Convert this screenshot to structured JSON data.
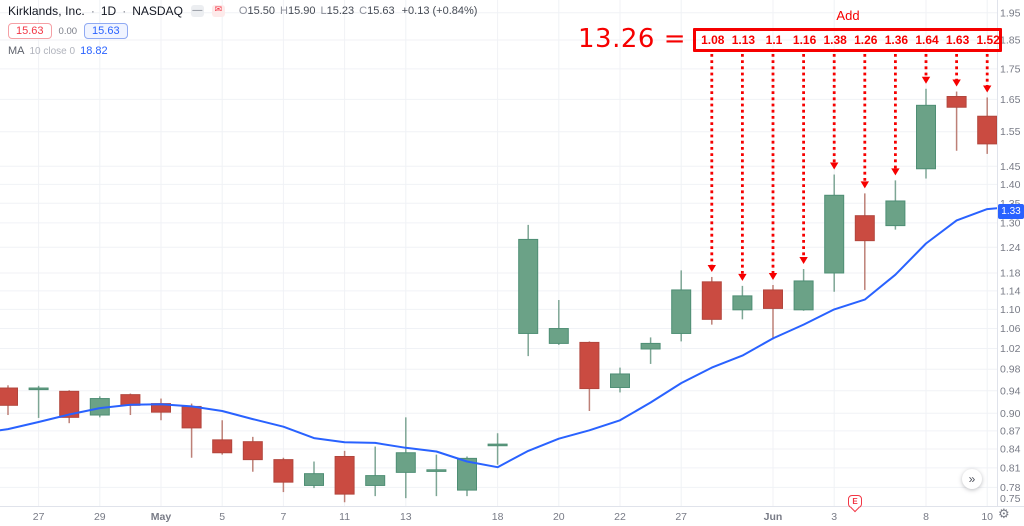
{
  "header": {
    "symbol_title": "Kirklands, Inc.",
    "sep1": "·",
    "timeframe": "1D",
    "sep2": "·",
    "exchange": "NASDAQ",
    "minus_icon_glyph": "—",
    "mail_icon_glyph": "✉",
    "ohlc": {
      "o_label": "O",
      "o_value": "15.50",
      "h_label": "H",
      "h_value": "15.90",
      "l_label": "L",
      "l_value": "15.23",
      "c_label": "C",
      "c_value": "15.63",
      "change": "+0.13 (+0.84%)"
    },
    "sell_price": "15.63",
    "spread": "0.00",
    "buy_price": "15.63",
    "ma_legend": {
      "name": "MA",
      "params": "10 close 0",
      "value": "18.82"
    }
  },
  "annotation": {
    "sum_label": "13.26 =",
    "add_label": "Add",
    "values": [
      "1.08",
      "1.13",
      "1.1",
      "1.16",
      "1.38",
      "1.26",
      "1.36",
      "1.64",
      "1.63",
      "1.52"
    ],
    "first_candle_index": 23,
    "color": "#f60000"
  },
  "price_scale": {
    "ma_price_label": "1.33"
  },
  "timeline": {
    "earnings_label": "E"
  },
  "buttons": {
    "goto_realtime": "»",
    "gear": "⚙"
  },
  "chart_data": {
    "type": "candlestick",
    "symbol": "Kirklands, Inc.",
    "interval": "1D",
    "exchange": "NASDAQ",
    "scale": "logarithmic",
    "grid": true,
    "price_axis": {
      "ticks": [
        "1.95",
        "1.85",
        "1.75",
        "1.65",
        "1.55",
        "1.45",
        "1.40",
        "1.35",
        "1.30",
        "1.24",
        "1.18",
        "1.14",
        "1.10",
        "1.06",
        "1.02",
        "0.98",
        "0.94",
        "0.90",
        "0.87",
        "0.84",
        "0.81",
        "0.78",
        "0.75"
      ],
      "current_ma_value": 1.33
    },
    "time_axis": {
      "ticks": [
        {
          "i": 1,
          "label": "27"
        },
        {
          "i": 3,
          "label": "29"
        },
        {
          "i": 5,
          "label": "May"
        },
        {
          "i": 7,
          "label": "5"
        },
        {
          "i": 9,
          "label": "7"
        },
        {
          "i": 11,
          "label": "11"
        },
        {
          "i": 13,
          "label": "13"
        },
        {
          "i": 16,
          "label": "18"
        },
        {
          "i": 18,
          "label": "20"
        },
        {
          "i": 20,
          "label": "22"
        },
        {
          "i": 22,
          "label": "27"
        },
        {
          "i": 25,
          "label": "Jun"
        },
        {
          "i": 27,
          "label": "3"
        },
        {
          "i": 30,
          "label": "8"
        },
        {
          "i": 32,
          "label": "10"
        }
      ]
    },
    "candles": [
      {
        "o": 0.945,
        "h": 0.95,
        "l": 0.897,
        "c": 0.914
      },
      {
        "o": 0.943,
        "h": 0.949,
        "l": 0.892,
        "c": 0.945
      },
      {
        "o": 0.939,
        "h": 0.941,
        "l": 0.883,
        "c": 0.893
      },
      {
        "o": 0.897,
        "h": 0.93,
        "l": 0.893,
        "c": 0.926
      },
      {
        "o": 0.933,
        "h": 0.935,
        "l": 0.897,
        "c": 0.914
      },
      {
        "o": 0.917,
        "h": 0.926,
        "l": 0.888,
        "c": 0.902
      },
      {
        "o": 0.912,
        "h": 0.917,
        "l": 0.826,
        "c": 0.875
      },
      {
        "o": 0.855,
        "h": 0.888,
        "l": 0.831,
        "c": 0.834
      },
      {
        "o": 0.852,
        "h": 0.86,
        "l": 0.804,
        "c": 0.823
      },
      {
        "o": 0.823,
        "h": 0.826,
        "l": 0.773,
        "c": 0.788
      },
      {
        "o": 0.783,
        "h": 0.82,
        "l": 0.779,
        "c": 0.801
      },
      {
        "o": 0.828,
        "h": 0.837,
        "l": 0.758,
        "c": 0.77
      },
      {
        "o": 0.783,
        "h": 0.844,
        "l": 0.767,
        "c": 0.798
      },
      {
        "o": 0.803,
        "h": 0.893,
        "l": 0.764,
        "c": 0.834
      },
      {
        "o": 0.805,
        "h": 0.831,
        "l": 0.767,
        "c": 0.807
      },
      {
        "o": 0.776,
        "h": 0.828,
        "l": 0.767,
        "c": 0.825
      },
      {
        "o": 0.846,
        "h": 0.866,
        "l": 0.815,
        "c": 0.848
      },
      {
        "o": 1.05,
        "h": 1.295,
        "l": 1.005,
        "c": 1.259
      },
      {
        "o": 1.03,
        "h": 1.12,
        "l": 1.027,
        "c": 1.06
      },
      {
        "o": 1.032,
        "h": 1.034,
        "l": 0.904,
        "c": 0.944
      },
      {
        "o": 0.946,
        "h": 0.983,
        "l": 0.937,
        "c": 0.971
      },
      {
        "o": 1.019,
        "h": 1.042,
        "l": 0.99,
        "c": 1.03
      },
      {
        "o": 1.05,
        "h": 1.186,
        "l": 1.034,
        "c": 1.142
      },
      {
        "o": 1.16,
        "h": 1.171,
        "l": 1.068,
        "c": 1.079
      },
      {
        "o": 1.099,
        "h": 1.151,
        "l": 1.079,
        "c": 1.129
      },
      {
        "o": 1.142,
        "h": 1.153,
        "l": 1.038,
        "c": 1.102
      },
      {
        "o": 1.099,
        "h": 1.189,
        "l": 1.097,
        "c": 1.162
      },
      {
        "o": 1.18,
        "h": 1.427,
        "l": 1.138,
        "c": 1.371
      },
      {
        "o": 1.318,
        "h": 1.376,
        "l": 1.142,
        "c": 1.256
      },
      {
        "o": 1.293,
        "h": 1.411,
        "l": 1.283,
        "c": 1.356
      },
      {
        "o": 1.443,
        "h": 1.684,
        "l": 1.416,
        "c": 1.631
      },
      {
        "o": 1.659,
        "h": 1.675,
        "l": 1.494,
        "c": 1.625
      },
      {
        "o": 1.597,
        "h": 1.656,
        "l": 1.485,
        "c": 1.514
      }
    ],
    "ma10": {
      "left_edge_price": 0.871,
      "values": [
        0.873,
        0.885,
        0.898,
        0.909,
        0.915,
        0.916,
        0.912,
        0.904,
        0.89,
        0.877,
        0.858,
        0.851,
        0.85,
        0.842,
        0.836,
        0.82,
        0.811,
        0.837,
        0.857,
        0.871,
        0.888,
        0.919,
        0.954,
        0.983,
        1.006,
        1.04,
        1.068,
        1.1,
        1.121,
        1.176,
        1.249,
        1.306,
        1.335
      ],
      "right_edge_price": 1.337
    },
    "colors": {
      "up_fill": "#6ba287",
      "up_stroke": "#4e8e74",
      "up_wick": "#7da695",
      "down_fill": "#ca4b41",
      "down_stroke": "#b2453c",
      "down_wick": "#bd8077",
      "ma_line": "#2962ff",
      "grid": "#f0f2f6",
      "axis_text": "#787b86",
      "axis_border": "#e0e3eb",
      "annotation_red": "#f60000",
      "price_label_bg": "#2962ff"
    }
  }
}
